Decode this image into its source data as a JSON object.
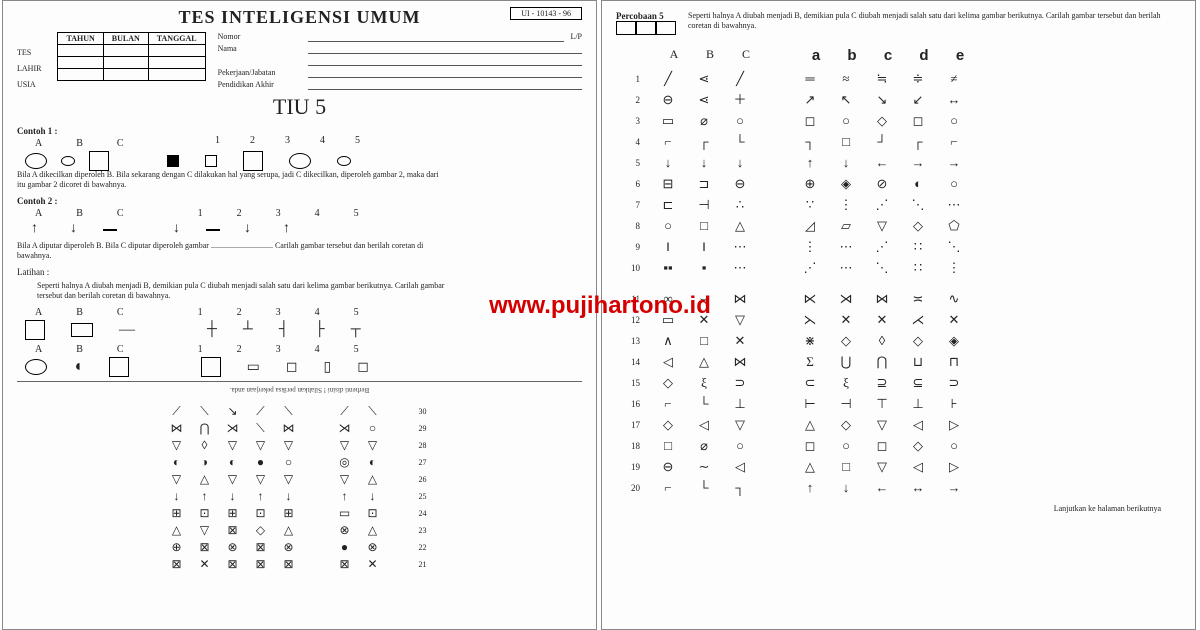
{
  "watermark": "www.pujihartono.id",
  "left": {
    "title": "TES INTELIGENSI UMUM",
    "code": "UI - 10143 - 96",
    "date_headers": [
      "TAHUN",
      "BULAN",
      "TANGGAL"
    ],
    "date_rows": [
      "TES",
      "LAHIR",
      "USIA"
    ],
    "form": {
      "nomor": "Nomor",
      "lp": "L/P",
      "nama": "Nama",
      "pekerjaan": "Pekerjaan/Jabatan",
      "pendidikan": "Pendidikan Akhir"
    },
    "tiu": "TIU 5",
    "contoh1": "Contoh 1 :",
    "abc": [
      "A",
      "B",
      "C"
    ],
    "nums15": [
      "1",
      "2",
      "3",
      "4",
      "5"
    ],
    "text1": "Bila A dikecilkan diperoleh B. Bila sekarang dengan C dilakukan hal yang serupa, jadi C dikecilkan, diperoleh gambar 2, maka dari itu gambar 2 dicoret di bawahnya.",
    "contoh2": "Contoh 2 :",
    "text2": "Bila A diputar diperoleh B. Bila C diputar diperoleh gambar ............................... Carilah gambar tersebut dan berilah coretan di bawahnya.",
    "latihan": "Latihan :",
    "text3": "Seperti halnya A diubah menjadi B, demikian pula C diubah menjadi salah satu dari kelima gambar berikutnya. Carilah gambar tersebut dan berilah coretan di bawahnya.",
    "upside_note": "Berhenti disini ! Silahkan periksa pekerjaan anda.",
    "bottom_rows": [
      {
        "n": "30",
        "s": [
          "⟋",
          "⟍",
          "↘",
          "⟋",
          "⟍",
          "  ",
          "⟋",
          "⟍"
        ]
      },
      {
        "n": "29",
        "s": [
          "⋈",
          "⋂",
          "⋊",
          "⟍",
          "⋈",
          "  ",
          "⋊",
          "○"
        ]
      },
      {
        "n": "28",
        "s": [
          "▽",
          "◊",
          "▽",
          "▽",
          "▽",
          "  ",
          "▽",
          "▽"
        ]
      },
      {
        "n": "27",
        "s": [
          "◐",
          "◑",
          "◐",
          "●",
          "○",
          "  ",
          "◎",
          "◐"
        ]
      },
      {
        "n": "26",
        "s": [
          "▽",
          "△",
          "▽",
          "▽",
          "▽",
          "  ",
          "▽",
          "△"
        ]
      },
      {
        "n": "25",
        "s": [
          "↓",
          "↑",
          "↓",
          "↑",
          "↓",
          "  ",
          "↑",
          "↓"
        ]
      },
      {
        "n": "24",
        "s": [
          "⊞",
          "⊡",
          "⊞",
          "⊡",
          "⊞",
          "  ",
          "▭",
          "⊡"
        ]
      },
      {
        "n": "23",
        "s": [
          "△",
          "▽",
          "⊠",
          "◇",
          "△",
          "  ",
          "⊗",
          "△"
        ]
      },
      {
        "n": "22",
        "s": [
          "⊕",
          "⊠",
          "⊗",
          "⊠",
          "⊗",
          "  ",
          "●",
          "⊗"
        ]
      },
      {
        "n": "21",
        "s": [
          "⊠",
          "✕",
          "⊠",
          "⊠",
          "⊠",
          "  ",
          "⊠",
          "✕"
        ]
      }
    ]
  },
  "right": {
    "perc_label": "Percobaan 5",
    "perc_text": "Seperti halnya A diubah menjadi B, demikian pula C diubah menjadi salah satu dari kelima gambar berikutnya. Carilah gambar tersebut dan berilah coretan di bawahnya.",
    "hdr_abc": [
      "A",
      "B",
      "C"
    ],
    "hdr_abcde": [
      "a",
      "b",
      "c",
      "d",
      "e"
    ],
    "rows": [
      {
        "n": "1",
        "abc": [
          "╱",
          "⋖",
          "╱"
        ],
        "op": [
          "═",
          "≈",
          "≒",
          "≑",
          "≠"
        ]
      },
      {
        "n": "2",
        "abc": [
          "⊖",
          "⋖",
          "＋"
        ],
        "op": [
          "↗",
          "↖",
          "↘",
          "↙",
          "↔"
        ]
      },
      {
        "n": "3",
        "abc": [
          "▭",
          "⌀",
          "○"
        ],
        "op": [
          "◻",
          "○",
          "◇",
          "◻",
          "○"
        ]
      },
      {
        "n": "4",
        "abc": [
          "⌐",
          "┌",
          "└"
        ],
        "op": [
          "┐",
          "□",
          "┘",
          "┌",
          "⌐"
        ]
      },
      {
        "n": "5",
        "abc": [
          "↓",
          "↓",
          "↓"
        ],
        "op": [
          "↑",
          "↓",
          "←",
          "→",
          "→"
        ]
      },
      {
        "n": "6",
        "abc": [
          "⊟",
          "⊐",
          "⊖"
        ],
        "op": [
          "⊕",
          "◈",
          "⊘",
          "◐",
          "○"
        ]
      },
      {
        "n": "7",
        "abc": [
          "⊏",
          "⊣",
          "∴"
        ],
        "op": [
          "∵",
          "⋮",
          "⋰",
          "⋱",
          "⋯"
        ]
      },
      {
        "n": "8",
        "abc": [
          "○",
          "□",
          "△"
        ],
        "op": [
          "◿",
          "▱",
          "▽",
          "◇",
          "⬠"
        ]
      },
      {
        "n": "9",
        "abc": [
          "‖",
          "‖",
          "⋯"
        ],
        "op": [
          "⋮",
          "⋯",
          "⋰",
          "∷",
          "⋱"
        ]
      },
      {
        "n": "10",
        "abc": [
          "▪▪",
          "▪",
          "⋯"
        ],
        "op": [
          "⋰",
          "⋯",
          "⋱",
          "∷",
          "⋮"
        ]
      },
      {
        "n": "11",
        "abc": [
          "∞",
          "⌣",
          "⋈"
        ],
        "op": [
          "⋉",
          "⋊",
          "⋈",
          "≍",
          "∿"
        ]
      },
      {
        "n": "12",
        "abc": [
          "▭",
          "✕",
          "▽"
        ],
        "op": [
          "⋋",
          "✕",
          "✕",
          "⋌",
          "✕"
        ]
      },
      {
        "n": "13",
        "abc": [
          "∧",
          "□",
          "✕"
        ],
        "op": [
          "⋇",
          "◇",
          "◊",
          "◇",
          "◈"
        ]
      },
      {
        "n": "14",
        "abc": [
          "◁",
          "△",
          "⋈"
        ],
        "op": [
          "Σ",
          "⋃",
          "⋂",
          "⊔",
          "⊓"
        ]
      },
      {
        "n": "15",
        "abc": [
          "◇",
          "ξ",
          "⊃"
        ],
        "op": [
          "⊂",
          "ξ",
          "⊇",
          "⊆",
          "⊃"
        ]
      },
      {
        "n": "16",
        "abc": [
          "⌐",
          "└",
          "⊥"
        ],
        "op": [
          "⊢",
          "⊣",
          "⊤",
          "⊥",
          "⊦"
        ]
      },
      {
        "n": "17",
        "abc": [
          "◇",
          "◁",
          "▽"
        ],
        "op": [
          "△",
          "◇",
          "▽",
          "◁",
          "▷"
        ]
      },
      {
        "n": "18",
        "abc": [
          "□",
          "⌀",
          "○"
        ],
        "op": [
          "◻",
          "○",
          "◻",
          "◇",
          "○"
        ]
      },
      {
        "n": "19",
        "abc": [
          "⊖",
          "∼",
          "◁"
        ],
        "op": [
          "△",
          "□",
          "▽",
          "◁",
          "▷"
        ]
      },
      {
        "n": "20",
        "abc": [
          "⌐",
          "└",
          "┐"
        ],
        "op": [
          "↑",
          "↓",
          "←",
          "↔",
          "→"
        ]
      }
    ],
    "footer": "Lanjutkan ke halaman berikutnya"
  }
}
